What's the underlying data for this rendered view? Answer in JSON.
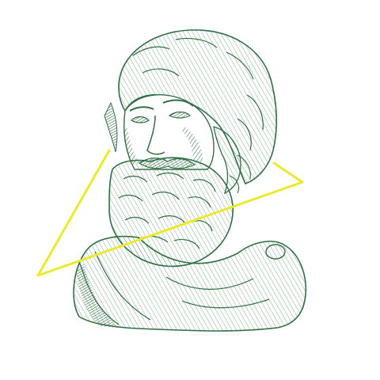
{
  "image": {
    "subject": "engraved-bust-illustration",
    "colors": {
      "ink": "#2f6f43",
      "ink_light": "#5f9a6c",
      "accent_line": "#ecea2c",
      "background": "#ffffff"
    }
  }
}
